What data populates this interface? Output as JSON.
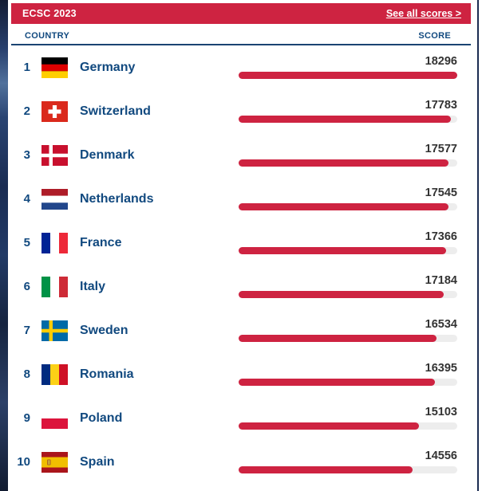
{
  "header": {
    "title": "ECSC 2023",
    "see_all_label": "See all scores >"
  },
  "columns": {
    "country": "COUNTRY",
    "score": "SCORE"
  },
  "max_score": 18296,
  "rows": [
    {
      "rank": 1,
      "country": "Germany",
      "score": 18296,
      "flag": "de"
    },
    {
      "rank": 2,
      "country": "Switzerland",
      "score": 17783,
      "flag": "ch"
    },
    {
      "rank": 3,
      "country": "Denmark",
      "score": 17577,
      "flag": "dk"
    },
    {
      "rank": 4,
      "country": "Netherlands",
      "score": 17545,
      "flag": "nl"
    },
    {
      "rank": 5,
      "country": "France",
      "score": 17366,
      "flag": "fr"
    },
    {
      "rank": 6,
      "country": "Italy",
      "score": 17184,
      "flag": "it"
    },
    {
      "rank": 7,
      "country": "Sweden",
      "score": 16534,
      "flag": "se"
    },
    {
      "rank": 8,
      "country": "Romania",
      "score": 16395,
      "flag": "ro"
    },
    {
      "rank": 9,
      "country": "Poland",
      "score": 15103,
      "flag": "pl"
    },
    {
      "rank": 10,
      "country": "Spain",
      "score": 14556,
      "flag": "es"
    }
  ],
  "colors": {
    "accent_red": "#ce2341",
    "navy_text": "#11497f",
    "rule_navy": "#1a4472",
    "score_text": "#333333",
    "bar_track": "#ededed",
    "edge_strip_navy": "#1b2c52"
  },
  "chart_data": {
    "type": "bar",
    "orientation": "horizontal",
    "title": "ECSC 2023",
    "categories": [
      "Germany",
      "Switzerland",
      "Denmark",
      "Netherlands",
      "France",
      "Italy",
      "Sweden",
      "Romania",
      "Poland",
      "Spain"
    ],
    "values": [
      18296,
      17783,
      17577,
      17545,
      17366,
      17184,
      16534,
      16395,
      15103,
      14556
    ],
    "xlabel": "SCORE",
    "ylabel": "COUNTRY",
    "xlim": [
      0,
      18296
    ],
    "grid": false,
    "value_labels_shown": true,
    "bar_color": "#ce2341"
  }
}
